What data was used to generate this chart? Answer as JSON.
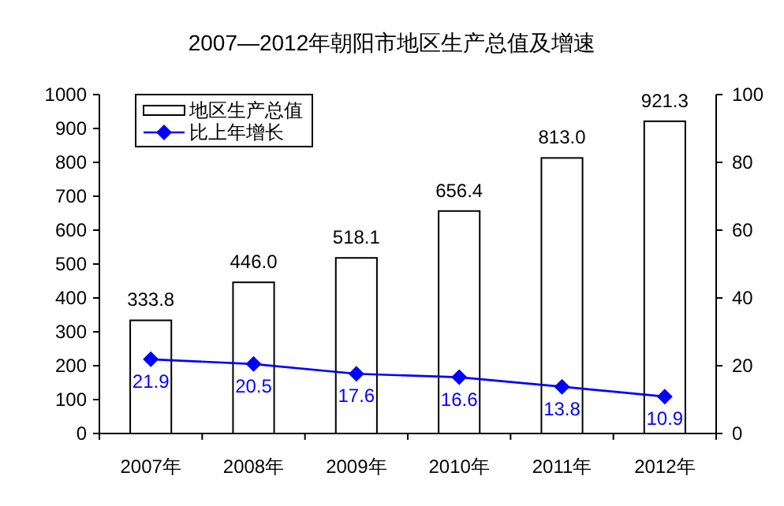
{
  "chart_data": {
    "type": "bar",
    "title": "2007—2012年朝阳市地区生产总值及增速",
    "categories": [
      "2007年",
      "2008年",
      "2009年",
      "2010年",
      "2011年",
      "2012年"
    ],
    "series": [
      {
        "name": "地区生产总值",
        "color": "#ffffff",
        "values": [
          333.8,
          446.0,
          518.1,
          656.4,
          813.0,
          921.3
        ],
        "value_labels": [
          "333.8",
          "446.0",
          "518.1",
          "656.4",
          "813.0",
          "921.3"
        ]
      },
      {
        "name": "比上年增长",
        "type": "line",
        "axis": "y2",
        "color": "#0000ff",
        "marker": "diamond",
        "values": [
          21.9,
          20.5,
          17.6,
          16.6,
          13.8,
          10.9
        ]
      }
    ],
    "ylim": [
      0,
      1000
    ],
    "yticks": [
      0,
      100,
      200,
      300,
      400,
      500,
      600,
      700,
      800,
      900,
      1000
    ],
    "y2lim": [
      0,
      100
    ],
    "y2ticks": [
      0,
      20,
      40,
      60,
      80,
      100
    ],
    "data_labels": true,
    "legend": "top left",
    "grid": false
  }
}
